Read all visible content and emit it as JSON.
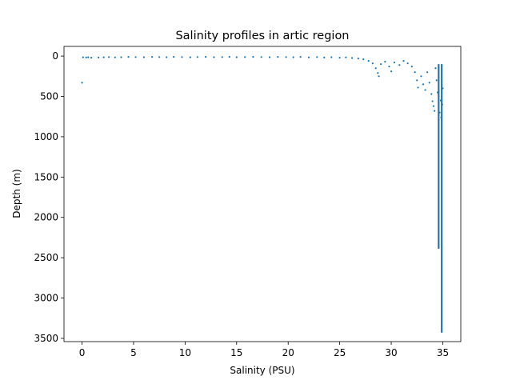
{
  "chart_data": {
    "type": "scatter",
    "title": "Salinity profiles in artic region",
    "xlabel": "Salinity (PSU)",
    "ylabel": "Depth (m)",
    "xlim": [
      -1.75,
      36.75
    ],
    "ylim": [
      3540,
      -120
    ],
    "y_inverted": true,
    "x_ticks": [
      0,
      5,
      10,
      15,
      20,
      25,
      30,
      35
    ],
    "y_ticks": [
      0,
      500,
      1000,
      1500,
      2000,
      2500,
      3000,
      3500
    ],
    "grid": false,
    "legend": "none",
    "series": [
      {
        "color": "#1f77b4",
        "points": [
          [
            0.0,
            330
          ],
          [
            0.1,
            15
          ],
          [
            0.4,
            18
          ],
          [
            0.6,
            15
          ],
          [
            0.9,
            20
          ],
          [
            1.6,
            18
          ],
          [
            2.1,
            15
          ],
          [
            2.6,
            12
          ],
          [
            3.2,
            16
          ],
          [
            3.8,
            14
          ],
          [
            4.5,
            10
          ],
          [
            5.2,
            12
          ],
          [
            6.0,
            14
          ],
          [
            6.8,
            10
          ],
          [
            7.5,
            12
          ],
          [
            8.2,
            14
          ],
          [
            8.9,
            10
          ],
          [
            9.7,
            12
          ],
          [
            10.5,
            15
          ],
          [
            11.2,
            12
          ],
          [
            12.0,
            10
          ],
          [
            12.8,
            14
          ],
          [
            13.6,
            12
          ],
          [
            14.3,
            10
          ],
          [
            15.0,
            14
          ],
          [
            15.8,
            12
          ],
          [
            16.6,
            10
          ],
          [
            17.4,
            12
          ],
          [
            18.2,
            14
          ],
          [
            19.0,
            10
          ],
          [
            19.8,
            12
          ],
          [
            20.5,
            14
          ],
          [
            21.2,
            10
          ],
          [
            22.0,
            16
          ],
          [
            22.8,
            12
          ],
          [
            23.5,
            18
          ],
          [
            24.2,
            14
          ],
          [
            25.0,
            20
          ],
          [
            25.6,
            16
          ],
          [
            26.2,
            24
          ],
          [
            26.8,
            30
          ],
          [
            27.3,
            40
          ],
          [
            27.8,
            60
          ],
          [
            28.2,
            90
          ],
          [
            28.5,
            150
          ],
          [
            28.7,
            210
          ],
          [
            28.8,
            250
          ],
          [
            29.0,
            100
          ],
          [
            29.4,
            70
          ],
          [
            29.8,
            130
          ],
          [
            30.0,
            190
          ],
          [
            30.3,
            80
          ],
          [
            30.8,
            110
          ],
          [
            31.2,
            60
          ],
          [
            31.6,
            90
          ],
          [
            32.0,
            130
          ],
          [
            32.3,
            200
          ],
          [
            32.5,
            300
          ],
          [
            32.6,
            390
          ],
          [
            32.9,
            250
          ],
          [
            33.1,
            350
          ],
          [
            33.3,
            420
          ],
          [
            33.5,
            200
          ],
          [
            33.7,
            330
          ],
          [
            33.9,
            470
          ],
          [
            34.0,
            560
          ],
          [
            34.1,
            620
          ],
          [
            34.2,
            680
          ],
          [
            34.3,
            150
          ],
          [
            34.4,
            300
          ],
          [
            34.5,
            450
          ],
          [
            34.6,
            2380
          ],
          [
            34.7,
            700
          ],
          [
            34.8,
            550
          ],
          [
            34.85,
            760
          ],
          [
            34.9,
            3420
          ],
          [
            34.95,
            600
          ],
          [
            35.0,
            400
          ]
        ],
        "profiles": [
          {
            "x_top": 34.6,
            "x_bottom": 34.6,
            "depth_top": 100,
            "depth_bottom": 2380
          },
          {
            "x_top": 34.9,
            "x_bottom": 34.9,
            "depth_top": 100,
            "depth_bottom": 3420
          }
        ]
      }
    ]
  }
}
